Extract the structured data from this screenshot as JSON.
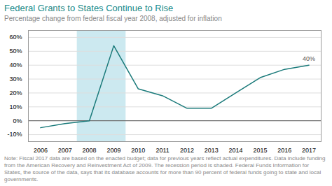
{
  "chart_data": {
    "type": "line",
    "title": "Federal Grants to States Continue to Rise",
    "subtitle": "Percentage change from federal fiscal year 2008, adjusted for inflation",
    "note": "Note: Fiscal 2017 data are based on the enacted budget; data for previous years reflect actual expenditures. Data include funding from the American Recovery and Reinvestment Act of 2009. The recession period is shaded. Federal Funds Information for States, the source of the data, says that its database accounts for more than 90 percent of federal funds going to state and local governments.",
    "x": [
      2006,
      2007,
      2008,
      2009,
      2010,
      2011,
      2012,
      2013,
      2014,
      2015,
      2016,
      2017
    ],
    "values": [
      -5,
      -2,
      0,
      54,
      23,
      18,
      9,
      9,
      20,
      31,
      37,
      40
    ],
    "color": "#1a7a7a",
    "xlim": [
      2005.5,
      2017.5
    ],
    "xticks": [
      2006,
      2007,
      2008,
      2009,
      2010,
      2011,
      2012,
      2013,
      2014,
      2015,
      2016,
      2017
    ],
    "ylim": [
      -15,
      65
    ],
    "yticks": [
      {
        "value": -10,
        "label": "-10%"
      },
      {
        "value": 0,
        "label": "0%"
      },
      {
        "value": 10,
        "label": "10%"
      },
      {
        "value": 20,
        "label": "20%"
      },
      {
        "value": 30,
        "label": "30%"
      },
      {
        "value": 40,
        "label": "40%"
      },
      {
        "value": 50,
        "label": "50%"
      },
      {
        "value": 60,
        "label": "60%"
      }
    ],
    "grid": true,
    "shaded_span": {
      "x1": 2007.5,
      "x2": 2009.5,
      "color": "#cce9f0"
    },
    "reference_lines": [
      {
        "y": 0,
        "color": "#555555"
      }
    ],
    "annotations": [
      {
        "text": "40%",
        "x": 2017,
        "y": 40
      }
    ]
  }
}
